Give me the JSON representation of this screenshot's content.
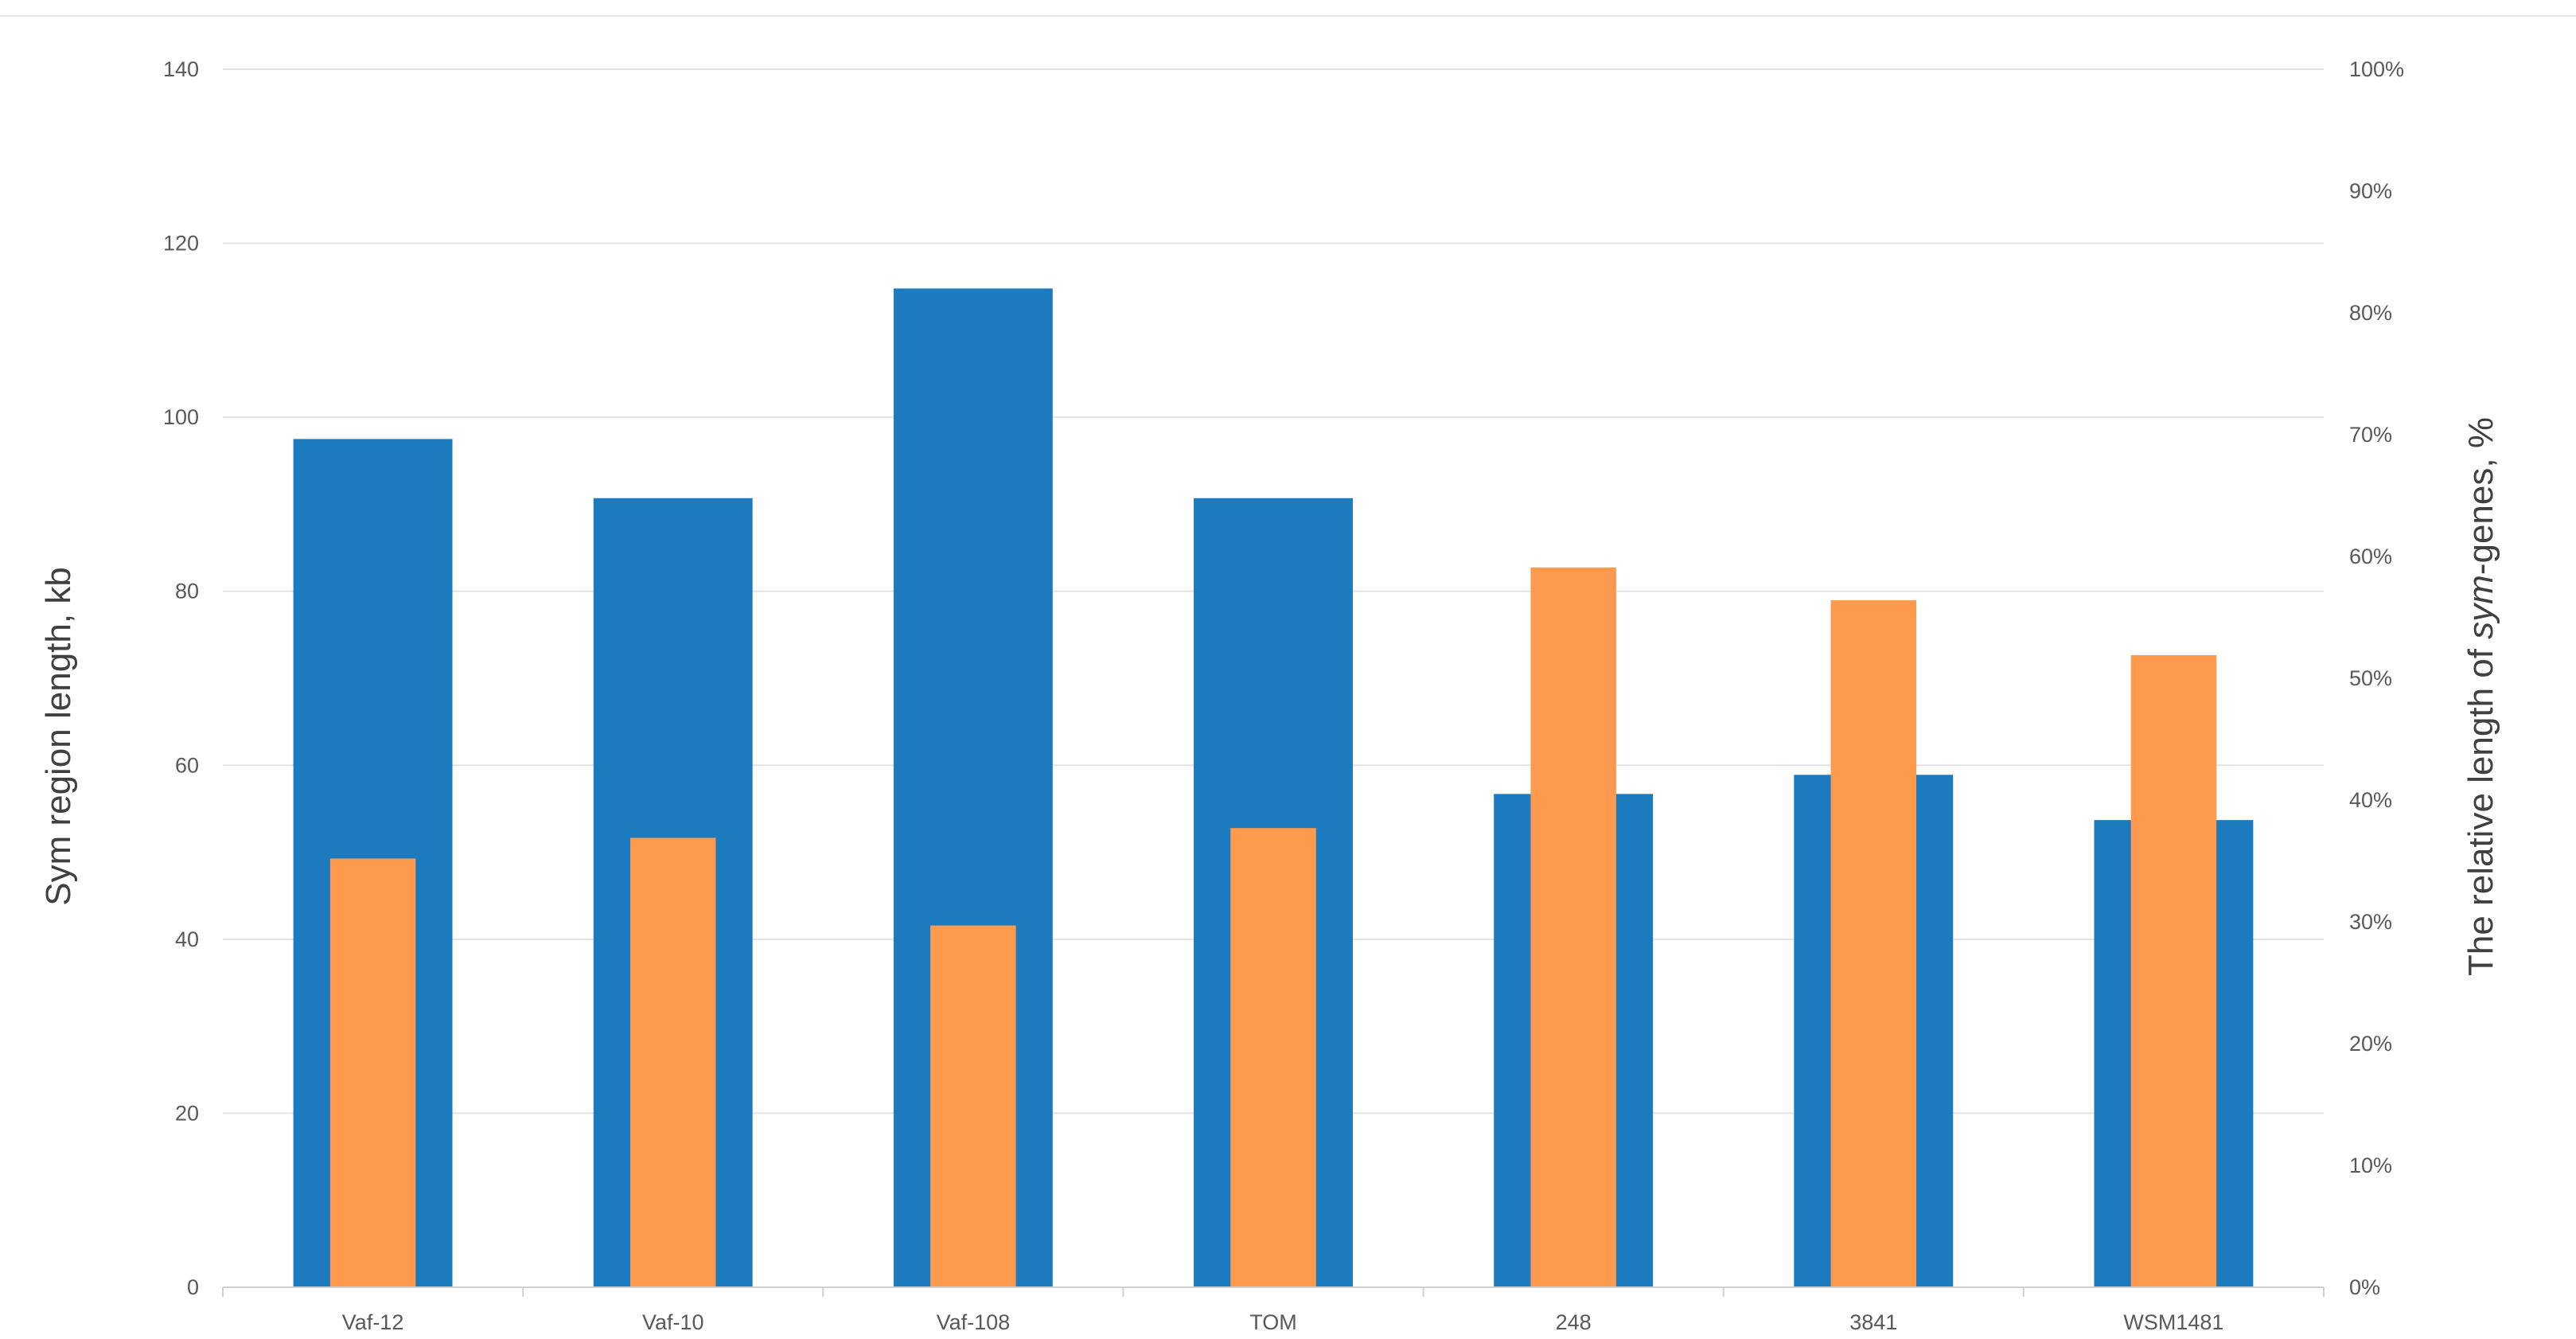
{
  "chart_data": {
    "type": "bar",
    "categories": [
      "Vaf-12",
      "Vaf-10",
      "Vaf-108",
      "TOM",
      "248",
      "3841",
      "WSM1481"
    ],
    "series": [
      {
        "axis": "left",
        "color": "#1c7abf",
        "values": [
          97.5,
          90.7,
          114.8,
          90.7,
          56.7,
          58.9,
          53.7
        ]
      },
      {
        "axis": "right",
        "color": "#fd9a4d",
        "values": [
          0.352,
          0.369,
          0.297,
          0.377,
          0.591,
          0.564,
          0.519
        ]
      }
    ],
    "ylabel": "Sym region length, kb",
    "y2label_prefix": "The relative length of ",
    "y2label_italic": "sym",
    "y2label_suffix": "-genes, %",
    "ylim": [
      0,
      140
    ],
    "y_ticks": [
      "0",
      "20",
      "40",
      "60",
      "80",
      "100",
      "120",
      "140"
    ],
    "y2lim": [
      0,
      1
    ],
    "y2_ticks": [
      "0%",
      "10%",
      "20%",
      "30%",
      "40%",
      "50%",
      "60%",
      "70%",
      "80%",
      "90%",
      "100%"
    ],
    "grid": "horizontal",
    "legend": "none"
  }
}
